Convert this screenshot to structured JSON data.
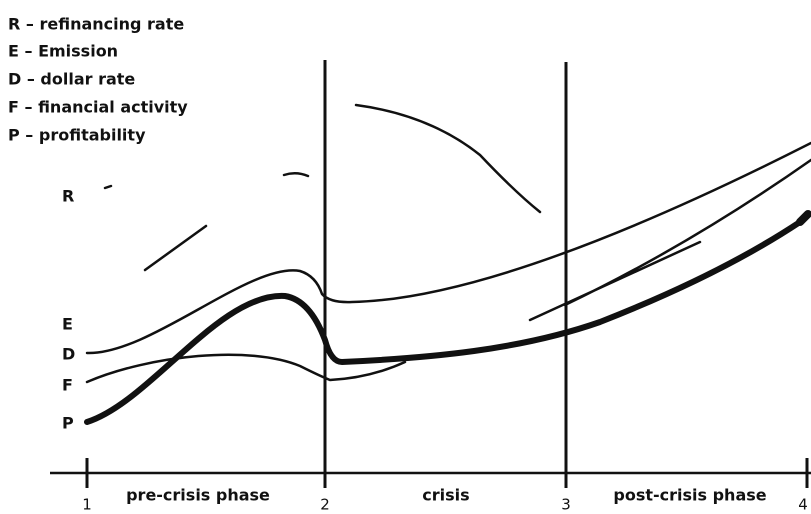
{
  "legend": [
    "R – refinancing rate",
    "E – Emission",
    "D – dollar rate",
    "F – financial activity",
    "P – profitability"
  ],
  "curve_labels": [
    "R",
    "E",
    "D",
    "F",
    "P"
  ],
  "axis": {
    "ticks": [
      "1",
      "2",
      "3",
      "4"
    ],
    "phases": [
      "pre-crisis phase",
      "crisis",
      "post-crisis phase"
    ]
  }
}
